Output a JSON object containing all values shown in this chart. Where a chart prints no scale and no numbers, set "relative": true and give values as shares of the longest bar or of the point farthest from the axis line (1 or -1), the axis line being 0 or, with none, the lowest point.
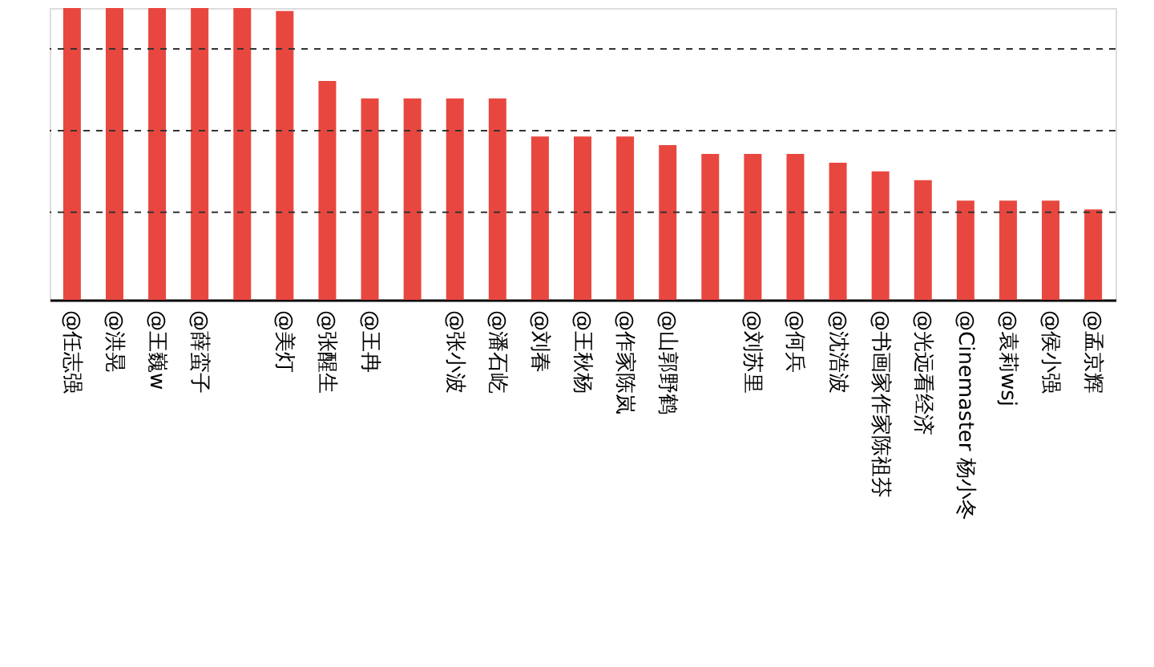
{
  "chart_data": {
    "type": "bar",
    "relative": true,
    "categories": [
      "@任志强",
      "@洪晃",
      "@王巍w",
      "@薛蛮子",
      null,
      "@美灯",
      "@张醒生",
      "@王冉",
      null,
      "@张小波",
      "@潘石屹",
      "@刘春",
      "@王秋杨",
      "@作家陈岚",
      "@山郭野鹤",
      null,
      "@刘苏里",
      "@何兵",
      "@沈浩波",
      "@书画家作家陈祖芬",
      "@光远看经济",
      "@Cinemaster 杨小冬",
      "@袁莉wsj",
      "@侯小强",
      "@孟京辉"
    ],
    "series": [
      {
        "color": "#e8473f",
        "values": [
          1,
          1,
          1,
          1,
          1,
          0.99,
          0.75,
          0.69,
          0.69,
          0.69,
          0.69,
          0.56,
          0.56,
          0.56,
          0.53,
          0.5,
          0.5,
          0.5,
          0.47,
          0.44,
          0.41,
          0.34,
          0.34,
          0.34,
          0.31
        ]
      }
    ],
    "ref_lines": [
      {
        "axis": "y",
        "value": 0.3,
        "color": "#333333",
        "line_style": "dashed"
      },
      {
        "axis": "y",
        "value": 0.58,
        "color": "#333333",
        "line_style": "dashed"
      },
      {
        "axis": "y",
        "value": 0.86,
        "color": "#333333",
        "line_style": "dashed"
      }
    ]
  }
}
